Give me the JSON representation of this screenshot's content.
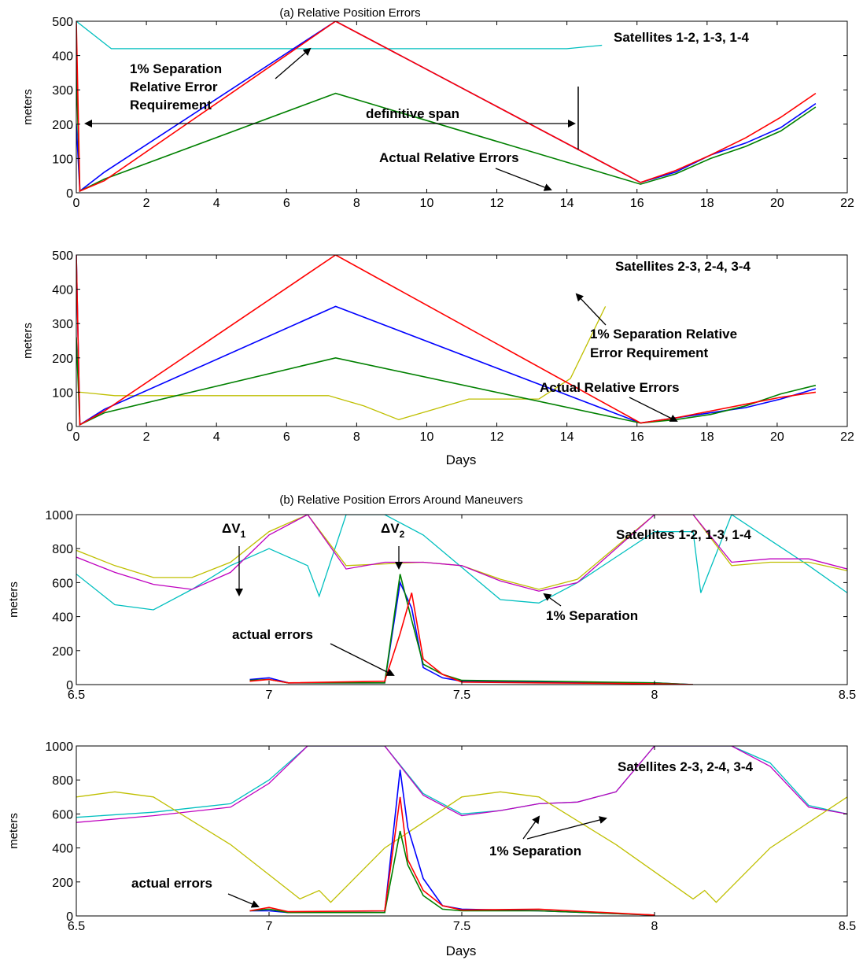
{
  "colors": {
    "blue": "#0000ff",
    "green": "#008000",
    "red": "#ff0000",
    "cyan": "#00bfbf",
    "yellow": "#bfbf00",
    "magenta": "#bf00bf"
  },
  "chart_data": [
    {
      "type": "line",
      "title": "(a)  Relative Position Errors",
      "xlabel": "",
      "ylabel": "meters",
      "xlim": [
        0,
        22
      ],
      "ylim": [
        0,
        500
      ],
      "xticks": [
        0,
        2,
        4,
        6,
        8,
        10,
        12,
        14,
        16,
        18,
        20,
        22
      ],
      "yticks": [
        0,
        100,
        200,
        300,
        400,
        500
      ],
      "grid": false,
      "annotations": {
        "label": "Satellites 1-2, 1-3, 1-4",
        "requirement": [
          "1% Separation",
          "Relative Error",
          "Requirement"
        ],
        "span": "definitive span",
        "actual": "Actual Relative Errors"
      },
      "span": [
        0.3,
        14.3
      ],
      "series": [
        {
          "color": "cyan",
          "role": "requirement",
          "x": [
            0,
            1,
            2,
            3,
            4,
            5,
            6,
            7,
            8,
            9,
            10,
            11,
            12,
            13,
            14,
            15
          ],
          "y": [
            520,
            420,
            420,
            420,
            420,
            420,
            420,
            420,
            420,
            420,
            420,
            420,
            420,
            420,
            420,
            430
          ]
        },
        {
          "color": "blue",
          "role": "error",
          "x": [
            0,
            0.1,
            0.8,
            7.4,
            16.1,
            17.1,
            18.1,
            19.1,
            20.1,
            21.1
          ],
          "y": [
            200,
            5,
            60,
            500,
            30,
            60,
            110,
            145,
            190,
            260
          ]
        },
        {
          "color": "green",
          "role": "error",
          "x": [
            0,
            0.1,
            0.8,
            7.4,
            16.1,
            17.1,
            18.1,
            19.1,
            20.1,
            21.1
          ],
          "y": [
            360,
            5,
            40,
            290,
            25,
            55,
            100,
            135,
            180,
            250
          ]
        },
        {
          "color": "red",
          "role": "error",
          "x": [
            0,
            0.1,
            0.8,
            7.4,
            16.1,
            17.1,
            18.1,
            19.1,
            20.1,
            21.1
          ],
          "y": [
            500,
            5,
            35,
            500,
            30,
            65,
            110,
            160,
            220,
            290
          ]
        }
      ]
    },
    {
      "type": "line",
      "title": "",
      "xlabel": "Days",
      "ylabel": "meters",
      "xlim": [
        0,
        22
      ],
      "ylim": [
        0,
        500
      ],
      "xticks": [
        0,
        2,
        4,
        6,
        8,
        10,
        12,
        14,
        16,
        18,
        20,
        22
      ],
      "yticks": [
        0,
        100,
        200,
        300,
        400,
        500
      ],
      "grid": false,
      "annotations": {
        "label": "Satellites 2-3, 2-4, 3-4",
        "requirement": [
          "1% Separation Relative",
          "Error Requirement"
        ],
        "actual": "Actual Relative Errors"
      },
      "series": [
        {
          "color": "yellow",
          "role": "requirement",
          "x": [
            0.1,
            1.1,
            2.1,
            3.2,
            4.2,
            5.2,
            6.2,
            7.2,
            8.2,
            9.2,
            10.2,
            11.2,
            12.2,
            13.2,
            14.1,
            15.1
          ],
          "y": [
            100,
            90,
            90,
            90,
            90,
            90,
            90,
            90,
            60,
            20,
            50,
            80,
            80,
            80,
            140,
            350
          ]
        },
        {
          "color": "blue",
          "role": "error",
          "x": [
            0,
            0.1,
            0.8,
            7.4,
            16.1,
            17.1,
            18.1,
            19.1,
            20.1,
            21.1
          ],
          "y": [
            500,
            5,
            50,
            350,
            10,
            25,
            40,
            55,
            80,
            110
          ]
        },
        {
          "color": "green",
          "role": "error",
          "x": [
            0,
            0.1,
            0.8,
            7.4,
            16.1,
            17.1,
            18.1,
            19.1,
            20.1,
            21.1
          ],
          "y": [
            260,
            5,
            40,
            200,
            10,
            20,
            35,
            60,
            95,
            120
          ]
        },
        {
          "color": "red",
          "role": "error",
          "x": [
            0,
            0.1,
            0.8,
            7.4,
            16.1,
            17.1,
            18.1,
            19.1,
            20.1,
            21.1
          ],
          "y": [
            500,
            5,
            45,
            500,
            10,
            25,
            45,
            65,
            85,
            100
          ]
        }
      ]
    },
    {
      "type": "line",
      "title": "(b) Relative Position Errors Around Maneuvers",
      "xlabel": "",
      "ylabel": "meters",
      "xlim": [
        6.5,
        8.5
      ],
      "ylim": [
        0,
        1000
      ],
      "xticks": [
        6.5,
        7,
        7.5,
        8,
        8.5
      ],
      "yticks": [
        0,
        200,
        400,
        600,
        800,
        1000
      ],
      "grid": false,
      "annotations": {
        "label": "Satellites 1-2, 1-3, 1-4",
        "dv1": "ΔV",
        "dv1_sub": "1",
        "dv2": "ΔV",
        "dv2_sub": "2",
        "separation": "1% Separation",
        "actual": "actual errors"
      },
      "series": [
        {
          "color": "cyan",
          "role": "requirement",
          "x": [
            6.5,
            6.6,
            6.7,
            6.8,
            6.9,
            7.0,
            7.1,
            7.13,
            7.2,
            7.3,
            7.4,
            7.5,
            7.6,
            7.7,
            7.8,
            7.9,
            8.0,
            8.1,
            8.12,
            8.2,
            8.3,
            8.4,
            8.5
          ],
          "y": [
            650,
            470,
            440,
            560,
            700,
            800,
            700,
            520,
            1000,
            1000,
            880,
            690,
            500,
            480,
            600,
            750,
            900,
            900,
            540,
            1000,
            850,
            700,
            540
          ]
        },
        {
          "color": "yellow",
          "role": "requirement",
          "x": [
            6.5,
            6.6,
            6.7,
            6.8,
            6.9,
            7.0,
            7.1,
            7.2,
            7.3,
            7.4,
            7.5,
            7.6,
            7.7,
            7.8,
            8.0,
            8.1,
            8.2,
            8.3,
            8.4,
            8.5
          ],
          "y": [
            790,
            700,
            630,
            630,
            720,
            900,
            1000,
            700,
            710,
            720,
            700,
            620,
            560,
            620,
            1000,
            1000,
            700,
            720,
            720,
            670
          ]
        },
        {
          "color": "magenta",
          "role": "requirement",
          "x": [
            6.5,
            6.6,
            6.7,
            6.8,
            6.9,
            7.0,
            7.1,
            7.2,
            7.3,
            7.4,
            7.5,
            7.6,
            7.7,
            7.8,
            8.0,
            8.1,
            8.2,
            8.3,
            8.4,
            8.5
          ],
          "y": [
            750,
            660,
            590,
            560,
            660,
            880,
            1000,
            680,
            720,
            720,
            700,
            610,
            550,
            600,
            1000,
            1000,
            720,
            740,
            740,
            680
          ]
        },
        {
          "color": "blue",
          "role": "error",
          "x": [
            6.95,
            7.0,
            7.05,
            7.3,
            7.34,
            7.37,
            7.4,
            7.45,
            7.5,
            7.7,
            8.0,
            8.1
          ],
          "y": [
            30,
            40,
            10,
            10,
            600,
            450,
            100,
            40,
            20,
            15,
            10,
            0
          ]
        },
        {
          "color": "green",
          "role": "error",
          "x": [
            6.95,
            7.0,
            7.05,
            7.3,
            7.34,
            7.37,
            7.4,
            7.45,
            7.5,
            7.7,
            8.0,
            8.1
          ],
          "y": [
            25,
            30,
            10,
            10,
            650,
            380,
            120,
            60,
            25,
            20,
            10,
            0
          ]
        },
        {
          "color": "red",
          "role": "error",
          "x": [
            6.95,
            7.0,
            7.05,
            7.3,
            7.34,
            7.37,
            7.4,
            7.45,
            7.5,
            7.7,
            8.0,
            8.1
          ],
          "y": [
            20,
            30,
            10,
            20,
            300,
            540,
            150,
            60,
            15,
            10,
            5,
            0
          ]
        }
      ]
    },
    {
      "type": "line",
      "title": "",
      "xlabel": "Days",
      "ylabel": "meters",
      "xlim": [
        6.5,
        8.5
      ],
      "ylim": [
        0,
        1000
      ],
      "xticks": [
        6.5,
        7,
        7.5,
        8,
        8.5
      ],
      "yticks": [
        0,
        200,
        400,
        600,
        800,
        1000
      ],
      "grid": false,
      "annotations": {
        "label": "Satellites 2-3, 2-4, 3-4",
        "separation": "1% Separation",
        "actual": "actual errors"
      },
      "series": [
        {
          "color": "cyan",
          "role": "requirement",
          "x": [
            6.5,
            6.7,
            6.9,
            7.0,
            7.1,
            7.2,
            7.3,
            7.4,
            7.5,
            7.6,
            7.7,
            7.8,
            7.9,
            8.0,
            8.1,
            8.2,
            8.3,
            8.4,
            8.5
          ],
          "y": [
            580,
            610,
            660,
            800,
            1000,
            1000,
            1000,
            720,
            600,
            620,
            660,
            670,
            730,
            1000,
            1000,
            1000,
            900,
            650,
            600
          ]
        },
        {
          "color": "magenta",
          "role": "requirement",
          "x": [
            6.5,
            6.7,
            6.9,
            7.0,
            7.1,
            7.2,
            7.3,
            7.4,
            7.5,
            7.6,
            7.7,
            7.8,
            7.9,
            8.0,
            8.1,
            8.2,
            8.3,
            8.4,
            8.5
          ],
          "y": [
            550,
            590,
            640,
            780,
            1000,
            1000,
            1000,
            710,
            590,
            620,
            660,
            670,
            730,
            1000,
            1000,
            1000,
            880,
            640,
            600
          ]
        },
        {
          "color": "yellow",
          "role": "requirement",
          "x": [
            6.5,
            6.6,
            6.7,
            6.9,
            7.08,
            7.13,
            7.16,
            7.3,
            7.5,
            7.6,
            7.7,
            7.9,
            8.1,
            8.13,
            8.16,
            8.3,
            8.5
          ],
          "y": [
            700,
            730,
            700,
            420,
            100,
            150,
            80,
            400,
            700,
            730,
            700,
            420,
            100,
            150,
            80,
            400,
            700
          ]
        },
        {
          "color": "blue",
          "role": "error",
          "x": [
            6.95,
            7.0,
            7.05,
            7.3,
            7.34,
            7.36,
            7.4,
            7.45,
            7.5,
            7.7,
            8.0
          ],
          "y": [
            30,
            30,
            20,
            20,
            860,
            520,
            220,
            60,
            40,
            30,
            5
          ]
        },
        {
          "color": "green",
          "role": "error",
          "x": [
            6.95,
            7.0,
            7.05,
            7.3,
            7.34,
            7.36,
            7.4,
            7.45,
            7.5,
            7.7,
            8.0
          ],
          "y": [
            30,
            40,
            20,
            20,
            500,
            300,
            120,
            40,
            30,
            30,
            5
          ]
        },
        {
          "color": "red",
          "role": "error",
          "x": [
            6.95,
            7.0,
            7.05,
            7.3,
            7.34,
            7.36,
            7.4,
            7.45,
            7.5,
            7.7,
            8.0
          ],
          "y": [
            30,
            50,
            25,
            30,
            700,
            330,
            150,
            60,
            35,
            40,
            5
          ]
        }
      ]
    }
  ]
}
